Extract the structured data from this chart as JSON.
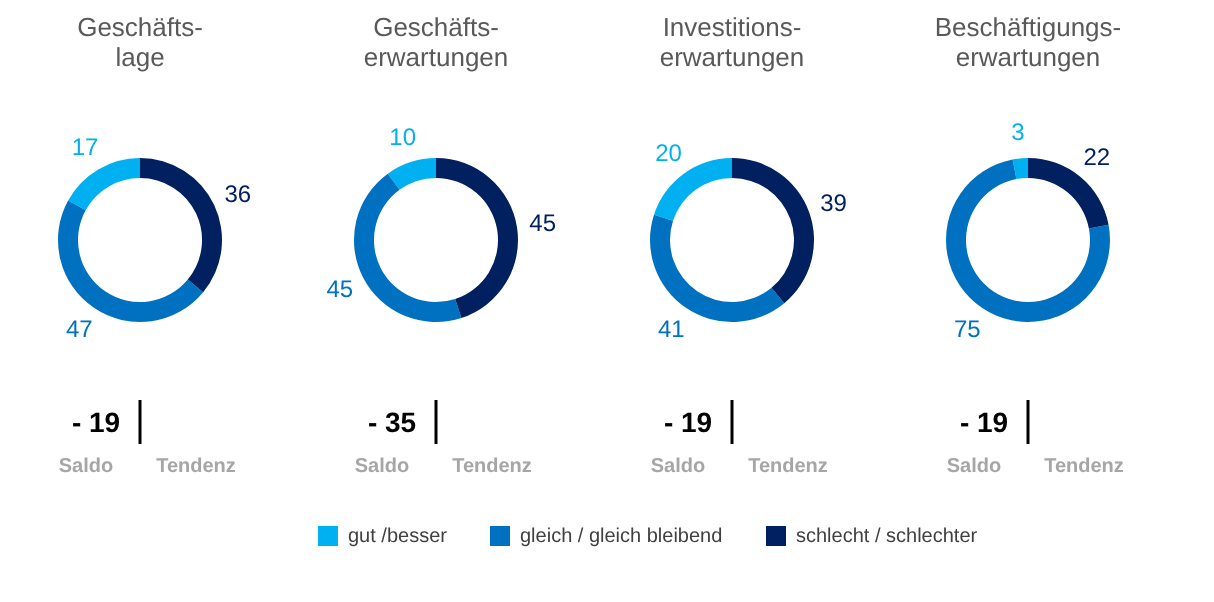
{
  "chart_data": [
    {
      "type": "donut",
      "title": "Geschäfts-\nlage",
      "categories": [
        "gut /besser",
        "gleich / gleich bleibend",
        "schlecht / schlechter"
      ],
      "values": [
        17,
        47,
        36
      ],
      "colors": [
        "#00b0f0",
        "#0070c0",
        "#002060"
      ],
      "data_labels": true,
      "legend": "bottom",
      "annotations": [
        "- 19",
        "Saldo",
        "Tendenz"
      ]
    },
    {
      "type": "donut",
      "title": "Geschäfts-\nerwartungen",
      "values": [
        10,
        45,
        45
      ],
      "colors": [
        "#00b0f0",
        "#0070c0",
        "#002060"
      ],
      "data_labels": true,
      "annotations": [
        "- 35",
        "Saldo",
        "Tendenz"
      ]
    },
    {
      "type": "donut",
      "title": "Investitions-\nerwartungen",
      "values": [
        20,
        41,
        39
      ],
      "colors": [
        "#00b0f0",
        "#0070c0",
        "#002060"
      ],
      "data_labels": true,
      "annotations": [
        "- 19",
        "Saldo",
        "Tendenz"
      ]
    },
    {
      "type": "donut",
      "title": "Beschäftigungs-\nerwartungen",
      "values": [
        3,
        75,
        22
      ],
      "colors": [
        "#00b0f0",
        "#0070c0",
        "#002060"
      ],
      "data_labels": true,
      "annotations": [
        "- 19",
        "Saldo",
        "Tendenz"
      ]
    }
  ]
}
